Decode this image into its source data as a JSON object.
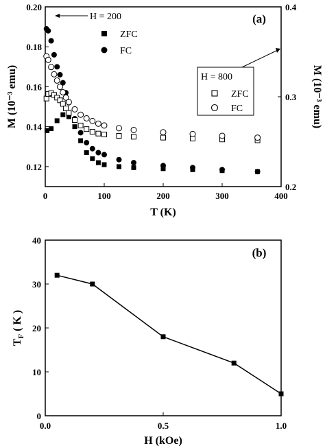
{
  "chart_data": [
    {
      "panel_label": "(a)",
      "type": "scatter",
      "xlabel": "T (K)",
      "ylabel_left": "M (10⁻³ emu)",
      "ylabel_right": "M (10⁻³ emu)",
      "xlim": [
        0,
        400
      ],
      "ylim_left": [
        0.11,
        0.2
      ],
      "ylim_right": [
        0.2,
        0.4
      ],
      "xticks": [
        "0",
        "100",
        "200",
        "300",
        "400"
      ],
      "yticks_left": [
        "0.12",
        "0.14",
        "0.16",
        "0.18",
        "0.20"
      ],
      "yticks_right": [
        "0.2",
        "0.3",
        "0.4"
      ],
      "grid": false,
      "legends": [
        {
          "title": "H = 200",
          "axis": "left",
          "entries": [
            "ZFC",
            "FC"
          ],
          "placement": "top-left"
        },
        {
          "title": "H = 800",
          "axis": "right",
          "entries": [
            "ZFC",
            "FC"
          ],
          "placement": "right"
        }
      ],
      "series": [
        {
          "name": "ZFC",
          "field": "H = 200",
          "axis": "left",
          "marker": "filled-square",
          "x": [
            3,
            10,
            20,
            30,
            40,
            50,
            60,
            70,
            80,
            90,
            100,
            125,
            150,
            200,
            250,
            300,
            360
          ],
          "y": [
            0.138,
            0.139,
            0.143,
            0.146,
            0.145,
            0.14,
            0.133,
            0.127,
            0.124,
            0.122,
            0.121,
            0.12,
            0.1195,
            0.119,
            0.1185,
            0.118,
            0.1175
          ]
        },
        {
          "name": "FC",
          "field": "H = 200",
          "axis": "left",
          "marker": "filled-circle",
          "x": [
            2,
            5,
            10,
            15,
            20,
            25,
            30,
            35,
            40,
            50,
            60,
            70,
            80,
            90,
            100,
            125,
            150,
            200,
            250,
            300,
            360
          ],
          "y": [
            0.189,
            0.188,
            0.183,
            0.176,
            0.17,
            0.166,
            0.162,
            0.157,
            0.152,
            0.144,
            0.137,
            0.132,
            0.129,
            0.127,
            0.126,
            0.1235,
            0.122,
            0.1205,
            0.1195,
            0.1185,
            0.1175
          ]
        },
        {
          "name": "ZFC",
          "field": "H = 800",
          "axis": "right",
          "marker": "open-square",
          "x": [
            2,
            5,
            10,
            15,
            20,
            25,
            30,
            35,
            40,
            50,
            60,
            70,
            80,
            90,
            100,
            125,
            150,
            200,
            250,
            300,
            360
          ],
          "y": [
            0.298,
            0.303,
            0.304,
            0.302,
            0.299,
            0.296,
            0.292,
            0.287,
            0.282,
            0.274,
            0.268,
            0.264,
            0.261,
            0.259,
            0.258,
            0.2565,
            0.2555,
            0.2545,
            0.2535,
            0.2525,
            0.2515
          ]
        },
        {
          "name": "FC",
          "field": "H = 800",
          "axis": "right",
          "marker": "open-circle",
          "x": [
            2,
            5,
            10,
            15,
            20,
            25,
            30,
            35,
            40,
            50,
            60,
            70,
            80,
            90,
            100,
            125,
            150,
            200,
            250,
            300,
            360
          ],
          "y": [
            0.345,
            0.341,
            0.333,
            0.325,
            0.318,
            0.311,
            0.305,
            0.299,
            0.294,
            0.286,
            0.28,
            0.276,
            0.273,
            0.27,
            0.268,
            0.265,
            0.263,
            0.2605,
            0.2585,
            0.2565,
            0.2545
          ]
        }
      ]
    },
    {
      "panel_label": "(b)",
      "type": "line",
      "xlabel": "H (kOe)",
      "ylabel": "T_F ( K )",
      "ylabel_main": "T",
      "ylabel_sub": "F",
      "ylabel_rest": " ( K )",
      "xlim": [
        0.0,
        1.0
      ],
      "ylim": [
        0,
        40
      ],
      "xticks": [
        "0.0",
        "0.5",
        "1.0"
      ],
      "yticks": [
        "0",
        "10",
        "20",
        "30",
        "40"
      ],
      "grid": false,
      "series": [
        {
          "marker": "filled-square",
          "x": [
            0.05,
            0.2,
            0.5,
            0.8,
            1.0
          ],
          "y": [
            32,
            30,
            18,
            12,
            5
          ]
        }
      ]
    }
  ]
}
